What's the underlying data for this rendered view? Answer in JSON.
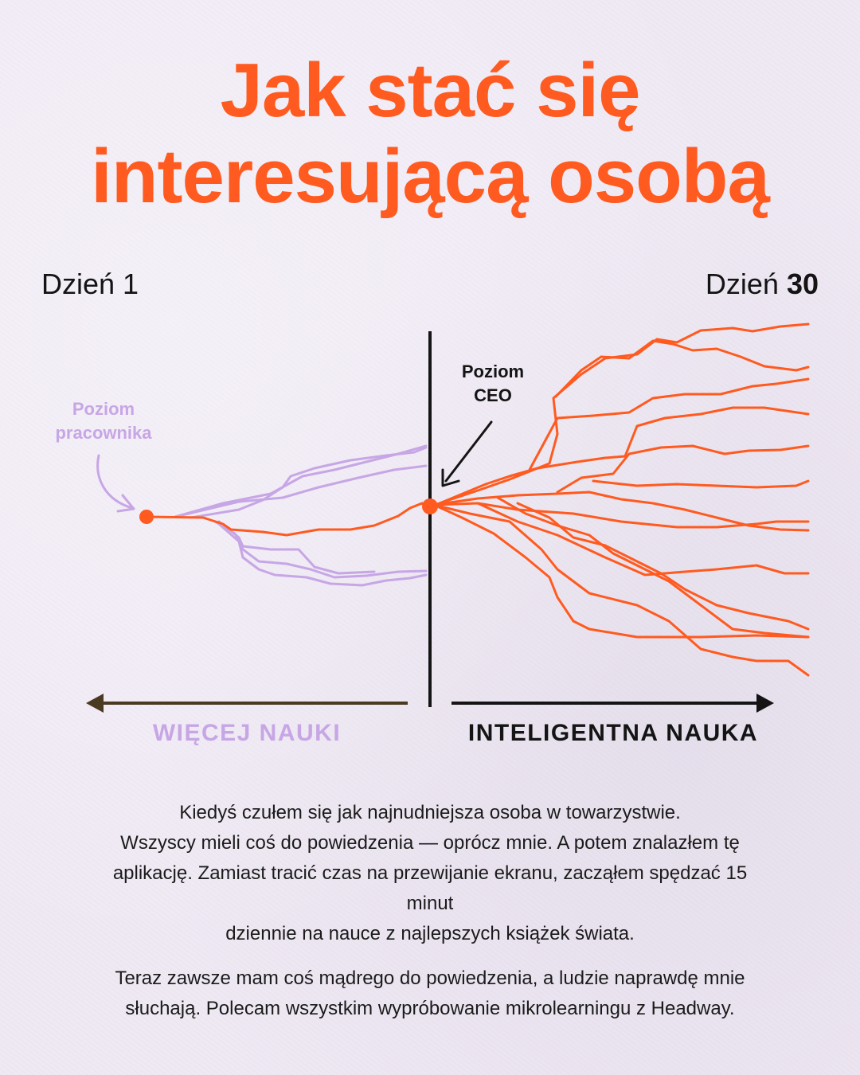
{
  "title": {
    "line1": "Jak stać się",
    "line2": "interesującą osobą"
  },
  "days": {
    "left": "Dzień 1",
    "right_prefix": "Dzień ",
    "right_number": "30"
  },
  "labels": {
    "worker": [
      "Poziom",
      "pracownika"
    ],
    "ceo": [
      "Poziom",
      "CEO"
    ]
  },
  "axis": {
    "left": "WIĘCEJ NAUKI",
    "right": "INTELIGENTNA NAUKA"
  },
  "body": {
    "paragraph1": [
      "Kiedyś czułem się jak najnudniejsza osoba w towarzystwie.",
      "Wszyscy mieli coś do powiedzenia — oprócz mnie. A potem znalazłem tę",
      "aplikację. Zamiast tracić czas na przewijanie ekranu, zacząłem spędzać 15",
      "minut",
      "dziennie na nauce z najlepszych książek świata."
    ],
    "paragraph2": [
      "Teraz zawsze mam coś mądrego do powiedzenia, a ludzie naprawdę mnie",
      "słuchają. Polecam wszystkim wypróbowanie mikrolearningu z Headway."
    ]
  },
  "colors": {
    "accent": "#ff5a1f",
    "lavender": "#c7a6e6",
    "dark_arrow": "#4a3a22",
    "ink": "#141414",
    "background": "#efe9f4"
  }
}
